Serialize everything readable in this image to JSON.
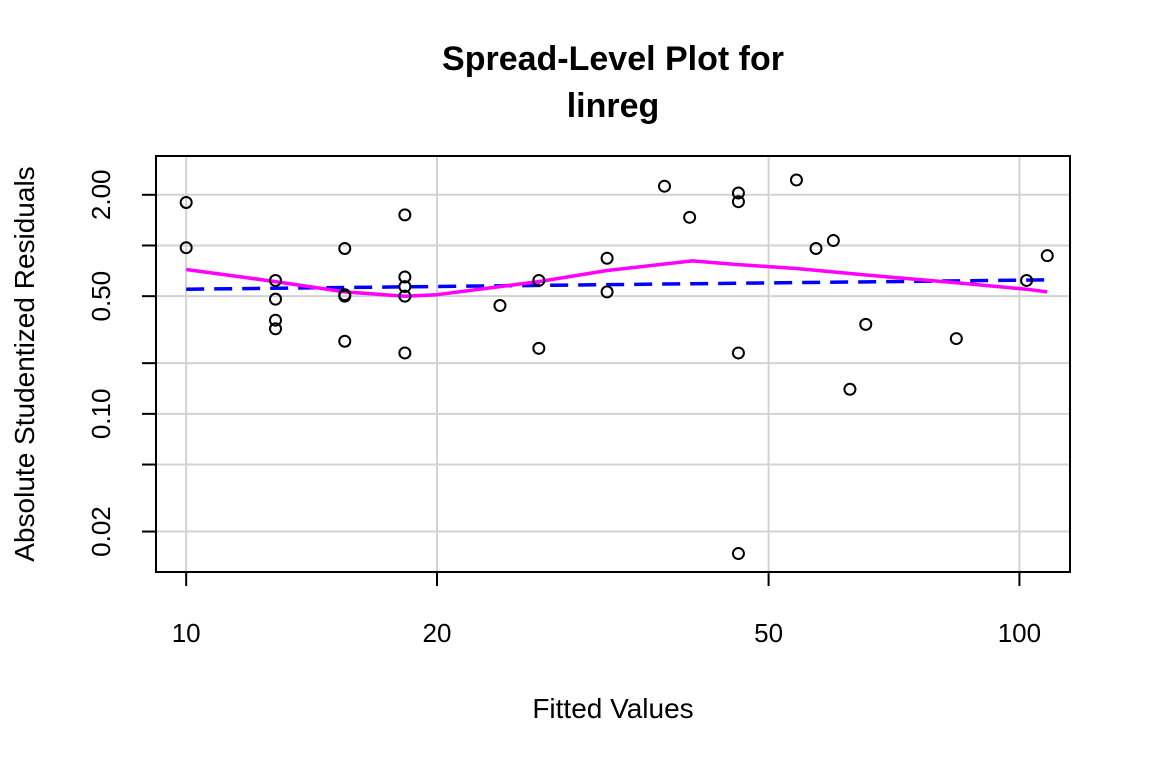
{
  "chart_data": {
    "type": "scatter",
    "title_lines": [
      "Spread-Level Plot for",
      "linreg"
    ],
    "xlabel": "Fitted Values",
    "ylabel": "Absolute Studentized Residuals",
    "x_scale": "log",
    "y_scale": "log",
    "xlim": [
      9.2,
      115
    ],
    "ylim": [
      0.0115,
      3.4
    ],
    "grid": true,
    "x_ticks": [
      10,
      20,
      50,
      100
    ],
    "x_tick_labels": [
      "10",
      "20",
      "50",
      "100"
    ],
    "y_grid_values": [
      2.0,
      1.0,
      0.5,
      0.2,
      0.1,
      0.05,
      0.02
    ],
    "y_ticks": [
      2.0,
      1.0,
      0.5,
      0.2,
      0.1,
      0.05,
      0.02
    ],
    "y_tick_labels": [
      "2.00",
      "",
      "0.50",
      "",
      "0.10",
      "",
      "0.02"
    ],
    "points": [
      {
        "x": 10,
        "y": 1.8
      },
      {
        "x": 10,
        "y": 0.97
      },
      {
        "x": 12.8,
        "y": 0.62
      },
      {
        "x": 12.8,
        "y": 0.48
      },
      {
        "x": 12.8,
        "y": 0.36
      },
      {
        "x": 12.8,
        "y": 0.32
      },
      {
        "x": 15.5,
        "y": 0.96
      },
      {
        "x": 15.5,
        "y": 0.51
      },
      {
        "x": 15.5,
        "y": 0.5
      },
      {
        "x": 15.5,
        "y": 0.27
      },
      {
        "x": 18.3,
        "y": 1.52
      },
      {
        "x": 18.3,
        "y": 0.65
      },
      {
        "x": 18.3,
        "y": 0.57
      },
      {
        "x": 18.3,
        "y": 0.5
      },
      {
        "x": 18.3,
        "y": 0.23
      },
      {
        "x": 23.8,
        "y": 0.44
      },
      {
        "x": 26.5,
        "y": 0.62
      },
      {
        "x": 26.5,
        "y": 0.245
      },
      {
        "x": 32,
        "y": 0.84
      },
      {
        "x": 32,
        "y": 0.53
      },
      {
        "x": 37.5,
        "y": 2.25
      },
      {
        "x": 40.2,
        "y": 1.47
      },
      {
        "x": 46,
        "y": 2.05
      },
      {
        "x": 46,
        "y": 1.82
      },
      {
        "x": 46,
        "y": 0.23
      },
      {
        "x": 46,
        "y": 0.0148
      },
      {
        "x": 54,
        "y": 2.45
      },
      {
        "x": 57,
        "y": 0.96
      },
      {
        "x": 59.8,
        "y": 1.07
      },
      {
        "x": 62.6,
        "y": 0.14
      },
      {
        "x": 65.4,
        "y": 0.34
      },
      {
        "x": 84,
        "y": 0.28
      },
      {
        "x": 102,
        "y": 0.62
      },
      {
        "x": 108,
        "y": 0.87
      }
    ],
    "series": [
      {
        "type": "line",
        "dash": "dashed",
        "color": "#0000ff",
        "x": [
          10,
          108
        ],
        "y": [
          0.55,
          0.625
        ]
      },
      {
        "type": "line",
        "dash": "solid",
        "color": "#ff00ff",
        "x": [
          10,
          12.8,
          15.5,
          18.3,
          20,
          26.5,
          32,
          40.5,
          46,
          54,
          65,
          84,
          102,
          108
        ],
        "y": [
          0.72,
          0.61,
          0.53,
          0.5,
          0.51,
          0.61,
          0.71,
          0.81,
          0.77,
          0.73,
          0.67,
          0.6,
          0.55,
          0.53
        ]
      }
    ]
  }
}
